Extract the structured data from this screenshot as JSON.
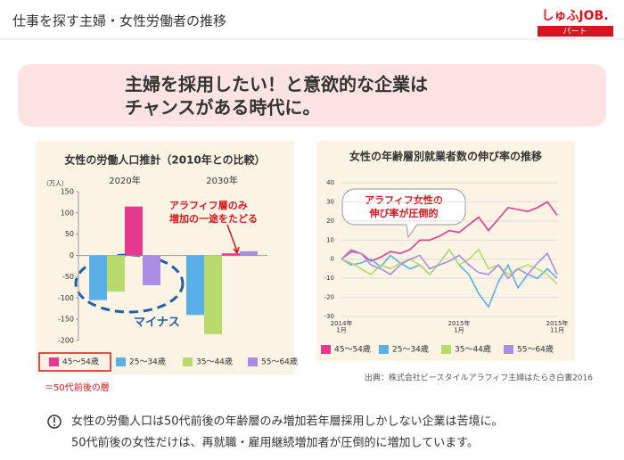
{
  "header": {
    "title": "仕事を探す主婦・女性労働者の推移",
    "logo": "しゅふJOB.",
    "logo_sub": "パート"
  },
  "banner": {
    "lines": [
      "主婦を採用したい！と意欲的な企業は",
      "チャンスがある時代に。"
    ]
  },
  "chart_data": [
    {
      "type": "bar",
      "title": "女性の労働人口推計（2010年との比較）",
      "y_label": "（万人）",
      "categories": [
        "2020年",
        "2030年"
      ],
      "series": [
        {
          "name": "45～54歳",
          "color": "#e4398e",
          "values": [
            115,
            5
          ]
        },
        {
          "name": "25～34歳",
          "color": "#5ab0e6",
          "values": [
            -105,
            -140
          ]
        },
        {
          "name": "35～44歳",
          "color": "#b8d96c",
          "values": [
            -85,
            -185
          ]
        },
        {
          "name": "55～64歳",
          "color": "#a98ce3",
          "values": [
            -70,
            10
          ]
        }
      ],
      "ylim": [
        -200,
        150
      ],
      "yticks": [
        -200,
        -150,
        -100,
        -50,
        0,
        50,
        100,
        150
      ],
      "annotations": [
        "アラフィフ層のみ",
        "増加の一途をたどる",
        "マイナス",
        "＝50代前後の層"
      ]
    },
    {
      "type": "line",
      "title": "女性の年齢層別就業者数の伸び率の推移",
      "categories": [
        "2014年\n1月",
        null,
        null,
        null,
        null,
        null,
        null,
        null,
        null,
        null,
        null,
        null,
        "2015年\n1月",
        null,
        null,
        null,
        null,
        null,
        null,
        null,
        null,
        null,
        "2015年\n11月"
      ],
      "series": [
        {
          "name": "45～54歳",
          "color": "#e4398e",
          "values": [
            0,
            4,
            3,
            -1,
            1,
            4,
            3,
            5,
            10,
            10,
            12,
            15,
            14,
            18,
            22,
            15,
            21,
            27,
            26,
            25,
            27,
            30,
            23
          ]
        },
        {
          "name": "25～34歳",
          "color": "#5ab0e6",
          "values": [
            0,
            -3,
            -2,
            0,
            -4,
            2,
            -2,
            -5,
            -3,
            -8,
            -2,
            5,
            -3,
            -8,
            -18,
            -25,
            -12,
            -3,
            -15,
            -8,
            -10,
            -5,
            -10
          ]
        },
        {
          "name": "35～44歳",
          "color": "#b8d96c",
          "values": [
            0,
            -2,
            -5,
            -8,
            -3,
            -5,
            -2,
            0,
            -3,
            -8,
            -2,
            5,
            -3,
            0,
            5,
            -5,
            -3,
            -8,
            -5,
            -3,
            -5,
            -8,
            -13
          ]
        },
        {
          "name": "55～64歳",
          "color": "#a98ce3",
          "values": [
            0,
            5,
            3,
            -3,
            -5,
            -8,
            -3,
            0,
            2,
            -5,
            -3,
            -1,
            2,
            -3,
            -7,
            -8,
            -3,
            -10,
            -5,
            -8,
            -2,
            3,
            -8
          ]
        }
      ],
      "ylim": [
        -30,
        40
      ],
      "yticks": [
        -30,
        -20,
        -10,
        0,
        10,
        20,
        30,
        40
      ],
      "grid": true,
      "annotations": [
        "アラフィフ女性の",
        "伸び率が圧倒的"
      ]
    }
  ],
  "source": "出典：株式会社ビースタイルアラフィフ主婦はたらき白書2016",
  "note": {
    "lines": [
      "女性の労働人口は50代前後の年齢層のみ増加若年層採用しかしない企業は苦境に。",
      "50代前後の女性だけは、再就職・雇用継続増加者が圧倒的に増加しています。"
    ]
  }
}
